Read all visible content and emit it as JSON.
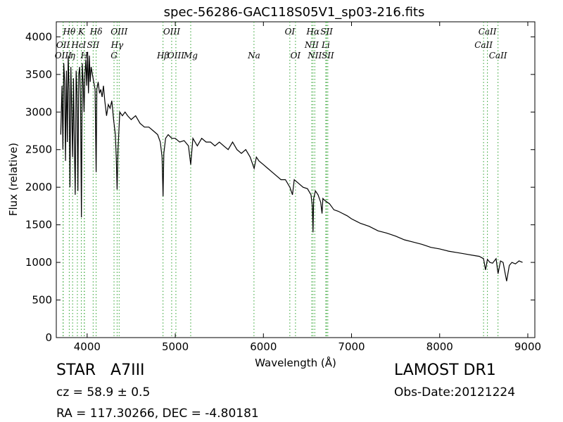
{
  "chart_data": {
    "type": "line",
    "title": "spec-56286-GAC118S05V1_sp03-216.fits",
    "xlabel": "Wavelength (Å)",
    "ylabel": "Flux (relative)",
    "xlim": [
      3650,
      9080
    ],
    "ylim": [
      0,
      4200
    ],
    "x_ticks": [
      4000,
      5000,
      6000,
      7000,
      8000,
      9000
    ],
    "y_ticks": [
      0,
      500,
      1000,
      1500,
      2000,
      2500,
      3000,
      3500,
      4000
    ],
    "grid": false,
    "line_color": "#000000",
    "marker_color": "#2ca02c",
    "series": [
      {
        "x": [
          3700,
          3715,
          3725,
          3735,
          3745,
          3755,
          3765,
          3775,
          3785,
          3795,
          3805,
          3815,
          3825,
          3835,
          3845,
          3855,
          3865,
          3875,
          3885,
          3895,
          3905,
          3915,
          3925,
          3935,
          3945,
          3955,
          3965,
          3975,
          3985,
          3995,
          4005,
          4015,
          4025,
          4035,
          4045,
          4060,
          4075,
          4090,
          4102,
          4110,
          4125,
          4140,
          4155,
          4170,
          4185,
          4200,
          4220,
          4240,
          4260,
          4280,
          4300,
          4320,
          4330,
          4340,
          4350,
          4370,
          4400,
          4430,
          4460,
          4500,
          4550,
          4600,
          4650,
          4700,
          4750,
          4800,
          4830,
          4850,
          4861,
          4870,
          4890,
          4920,
          4960,
          5000,
          5050,
          5100,
          5150,
          5175,
          5200,
          5250,
          5300,
          5350,
          5400,
          5450,
          5500,
          5550,
          5600,
          5650,
          5700,
          5750,
          5800,
          5850,
          5895,
          5920,
          5950,
          6000,
          6050,
          6100,
          6150,
          6200,
          6250,
          6300,
          6330,
          6350,
          6400,
          6450,
          6500,
          6540,
          6555,
          6563,
          6570,
          6590,
          6620,
          6650,
          6665,
          6675,
          6700,
          6750,
          6800,
          6850,
          6900,
          6950,
          7000,
          7100,
          7200,
          7300,
          7400,
          7500,
          7600,
          7700,
          7800,
          7900,
          8000,
          8100,
          8200,
          8300,
          8400,
          8450,
          8498,
          8520,
          8542,
          8570,
          8600,
          8640,
          8662,
          8690,
          8720,
          8760,
          8790,
          8820,
          8860,
          8900,
          8940
        ],
        "y": [
          2700,
          3350,
          2500,
          3650,
          3400,
          2350,
          3550,
          2600,
          3750,
          3300,
          2000,
          3600,
          3000,
          2400,
          3450,
          2550,
          1900,
          3550,
          3250,
          1950,
          3500,
          3600,
          3200,
          1600,
          3650,
          3400,
          3000,
          3500,
          3700,
          3350,
          3800,
          3250,
          3750,
          3400,
          3600,
          3500,
          3400,
          3300,
          2200,
          3300,
          3400,
          3250,
          3300,
          3200,
          3350,
          3150,
          2950,
          3100,
          3050,
          3150,
          2900,
          2700,
          2400,
          1970,
          2500,
          3000,
          2950,
          3000,
          2950,
          2900,
          2950,
          2850,
          2800,
          2800,
          2750,
          2700,
          2600,
          2400,
          1880,
          2450,
          2650,
          2700,
          2650,
          2650,
          2600,
          2620,
          2550,
          2300,
          2650,
          2550,
          2650,
          2600,
          2600,
          2550,
          2600,
          2550,
          2500,
          2600,
          2500,
          2450,
          2500,
          2400,
          2250,
          2400,
          2350,
          2300,
          2250,
          2200,
          2150,
          2100,
          2100,
          2000,
          1900,
          2100,
          2050,
          2000,
          1980,
          1900,
          1750,
          1400,
          1850,
          1950,
          1900,
          1800,
          1650,
          1850,
          1820,
          1780,
          1700,
          1680,
          1650,
          1620,
          1580,
          1520,
          1480,
          1420,
          1390,
          1350,
          1300,
          1270,
          1240,
          1200,
          1180,
          1150,
          1130,
          1110,
          1090,
          1080,
          1050,
          900,
          1040,
          1000,
          990,
          1050,
          850,
          1020,
          1000,
          750,
          960,
          1000,
          980,
          1020,
          1000
        ]
      }
    ],
    "lines_top": [
      {
        "label": "Hθ",
        "x": 3797
      },
      {
        "label": "K",
        "x": 3934
      },
      {
        "label": "Hδ",
        "x": 4102
      },
      {
        "label": "OIII",
        "x": 4363
      },
      {
        "label": "OIII",
        "x": 4959
      },
      {
        "label": "OI",
        "x": 6300
      },
      {
        "label": "Hα",
        "x": 6563
      },
      {
        "label": "SII",
        "x": 6717
      },
      {
        "label": "CaII",
        "x": 8542
      }
    ],
    "lines_mid": [
      {
        "label": "OII",
        "x": 3727
      },
      {
        "label": "Hc",
        "x": 3889
      },
      {
        "label": "I",
        "x": 3968
      },
      {
        "label": "SII",
        "x": 4068
      },
      {
        "label": "Hγ",
        "x": 4340
      },
      {
        "label": "NII",
        "x": 6548
      },
      {
        "label": "Li",
        "x": 6708
      },
      {
        "label": "CaII",
        "x": 8498
      }
    ],
    "lines_lower": [
      {
        "label": "OIII",
        "x": 3728
      },
      {
        "label": "η",
        "x": 3835
      },
      {
        "label": "H",
        "x": 3968
      },
      {
        "label": "G",
        "x": 4305
      },
      {
        "label": "Hβ",
        "x": 4861
      },
      {
        "label": "OIII",
        "x": 5007
      },
      {
        "label": "Mg",
        "x": 5175
      },
      {
        "label": "Na",
        "x": 5893
      },
      {
        "label": "OI",
        "x": 6364
      },
      {
        "label": "NII",
        "x": 6583
      },
      {
        "label": "SII",
        "x": 6731
      },
      {
        "label": "CaII",
        "x": 8662
      }
    ]
  },
  "info": {
    "object_class": "STAR",
    "subclass": "A7III",
    "survey": "LAMOST DR1",
    "cz_label": "cz = 58.9 ± 0.5",
    "obs_date": "Obs-Date:20121224",
    "coords": "RA = 117.30266, DEC = -4.80181"
  }
}
